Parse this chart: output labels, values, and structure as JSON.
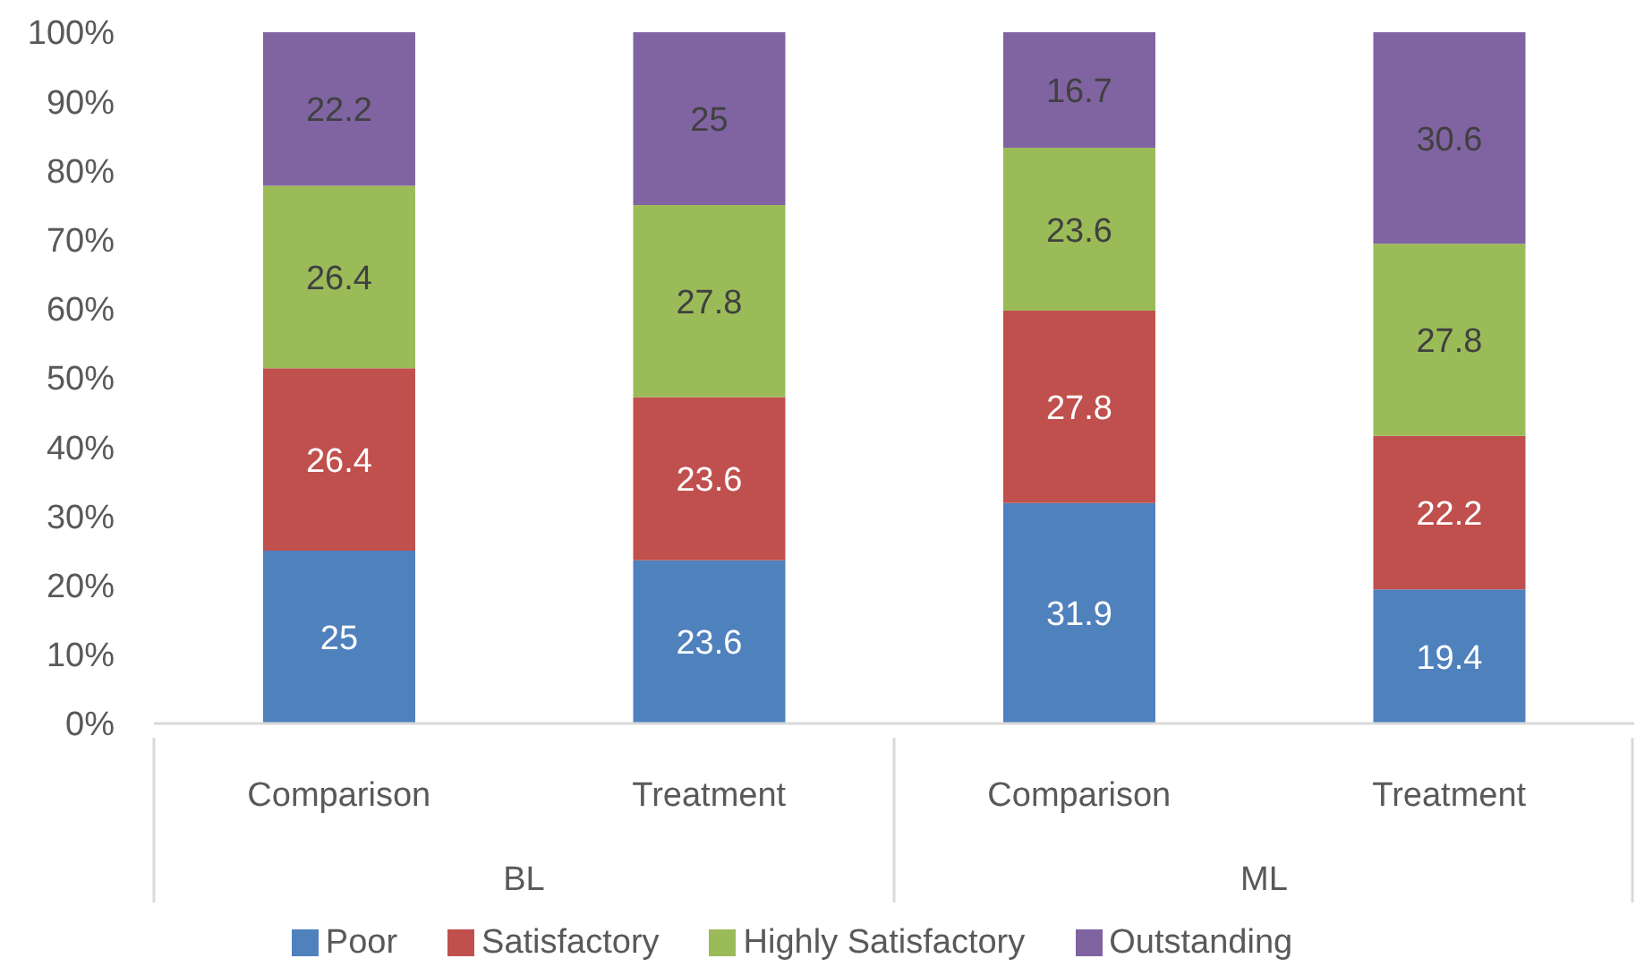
{
  "chart_data": {
    "type": "bar",
    "stacked": true,
    "categories": [
      "Comparison",
      "Treatment",
      "Comparison",
      "Treatment"
    ],
    "series": [
      {
        "name": "Poor",
        "color": "#4f81bd",
        "values": [
          25,
          23.6,
          31.9,
          19.4
        ]
      },
      {
        "name": "Satisfactory",
        "color": "#c0504d",
        "values": [
          26.4,
          23.6,
          27.8,
          22.2
        ]
      },
      {
        "name": "Highly Satisfactory",
        "color": "#9bbb59",
        "values": [
          26.4,
          27.8,
          23.6,
          27.8
        ]
      },
      {
        "name": "Outstanding",
        "color": "#8064a2",
        "values": [
          22.2,
          25,
          16.7,
          30.6
        ]
      }
    ],
    "ylim": [
      0,
      100
    ],
    "yticks": [
      {
        "value": 0,
        "label": "0%"
      },
      {
        "value": 10,
        "label": "10%"
      },
      {
        "value": 20,
        "label": "20%"
      },
      {
        "value": 30,
        "label": "30%"
      },
      {
        "value": 40,
        "label": "40%"
      },
      {
        "value": 50,
        "label": "50%"
      },
      {
        "value": 60,
        "label": "60%"
      },
      {
        "value": 70,
        "label": "70%"
      },
      {
        "value": 80,
        "label": "80%"
      },
      {
        "value": 90,
        "label": "90%"
      },
      {
        "value": 100,
        "label": "100%"
      }
    ],
    "data_labels": true,
    "legend": "bottom",
    "annotations": [
      "BL",
      "ML"
    ]
  }
}
